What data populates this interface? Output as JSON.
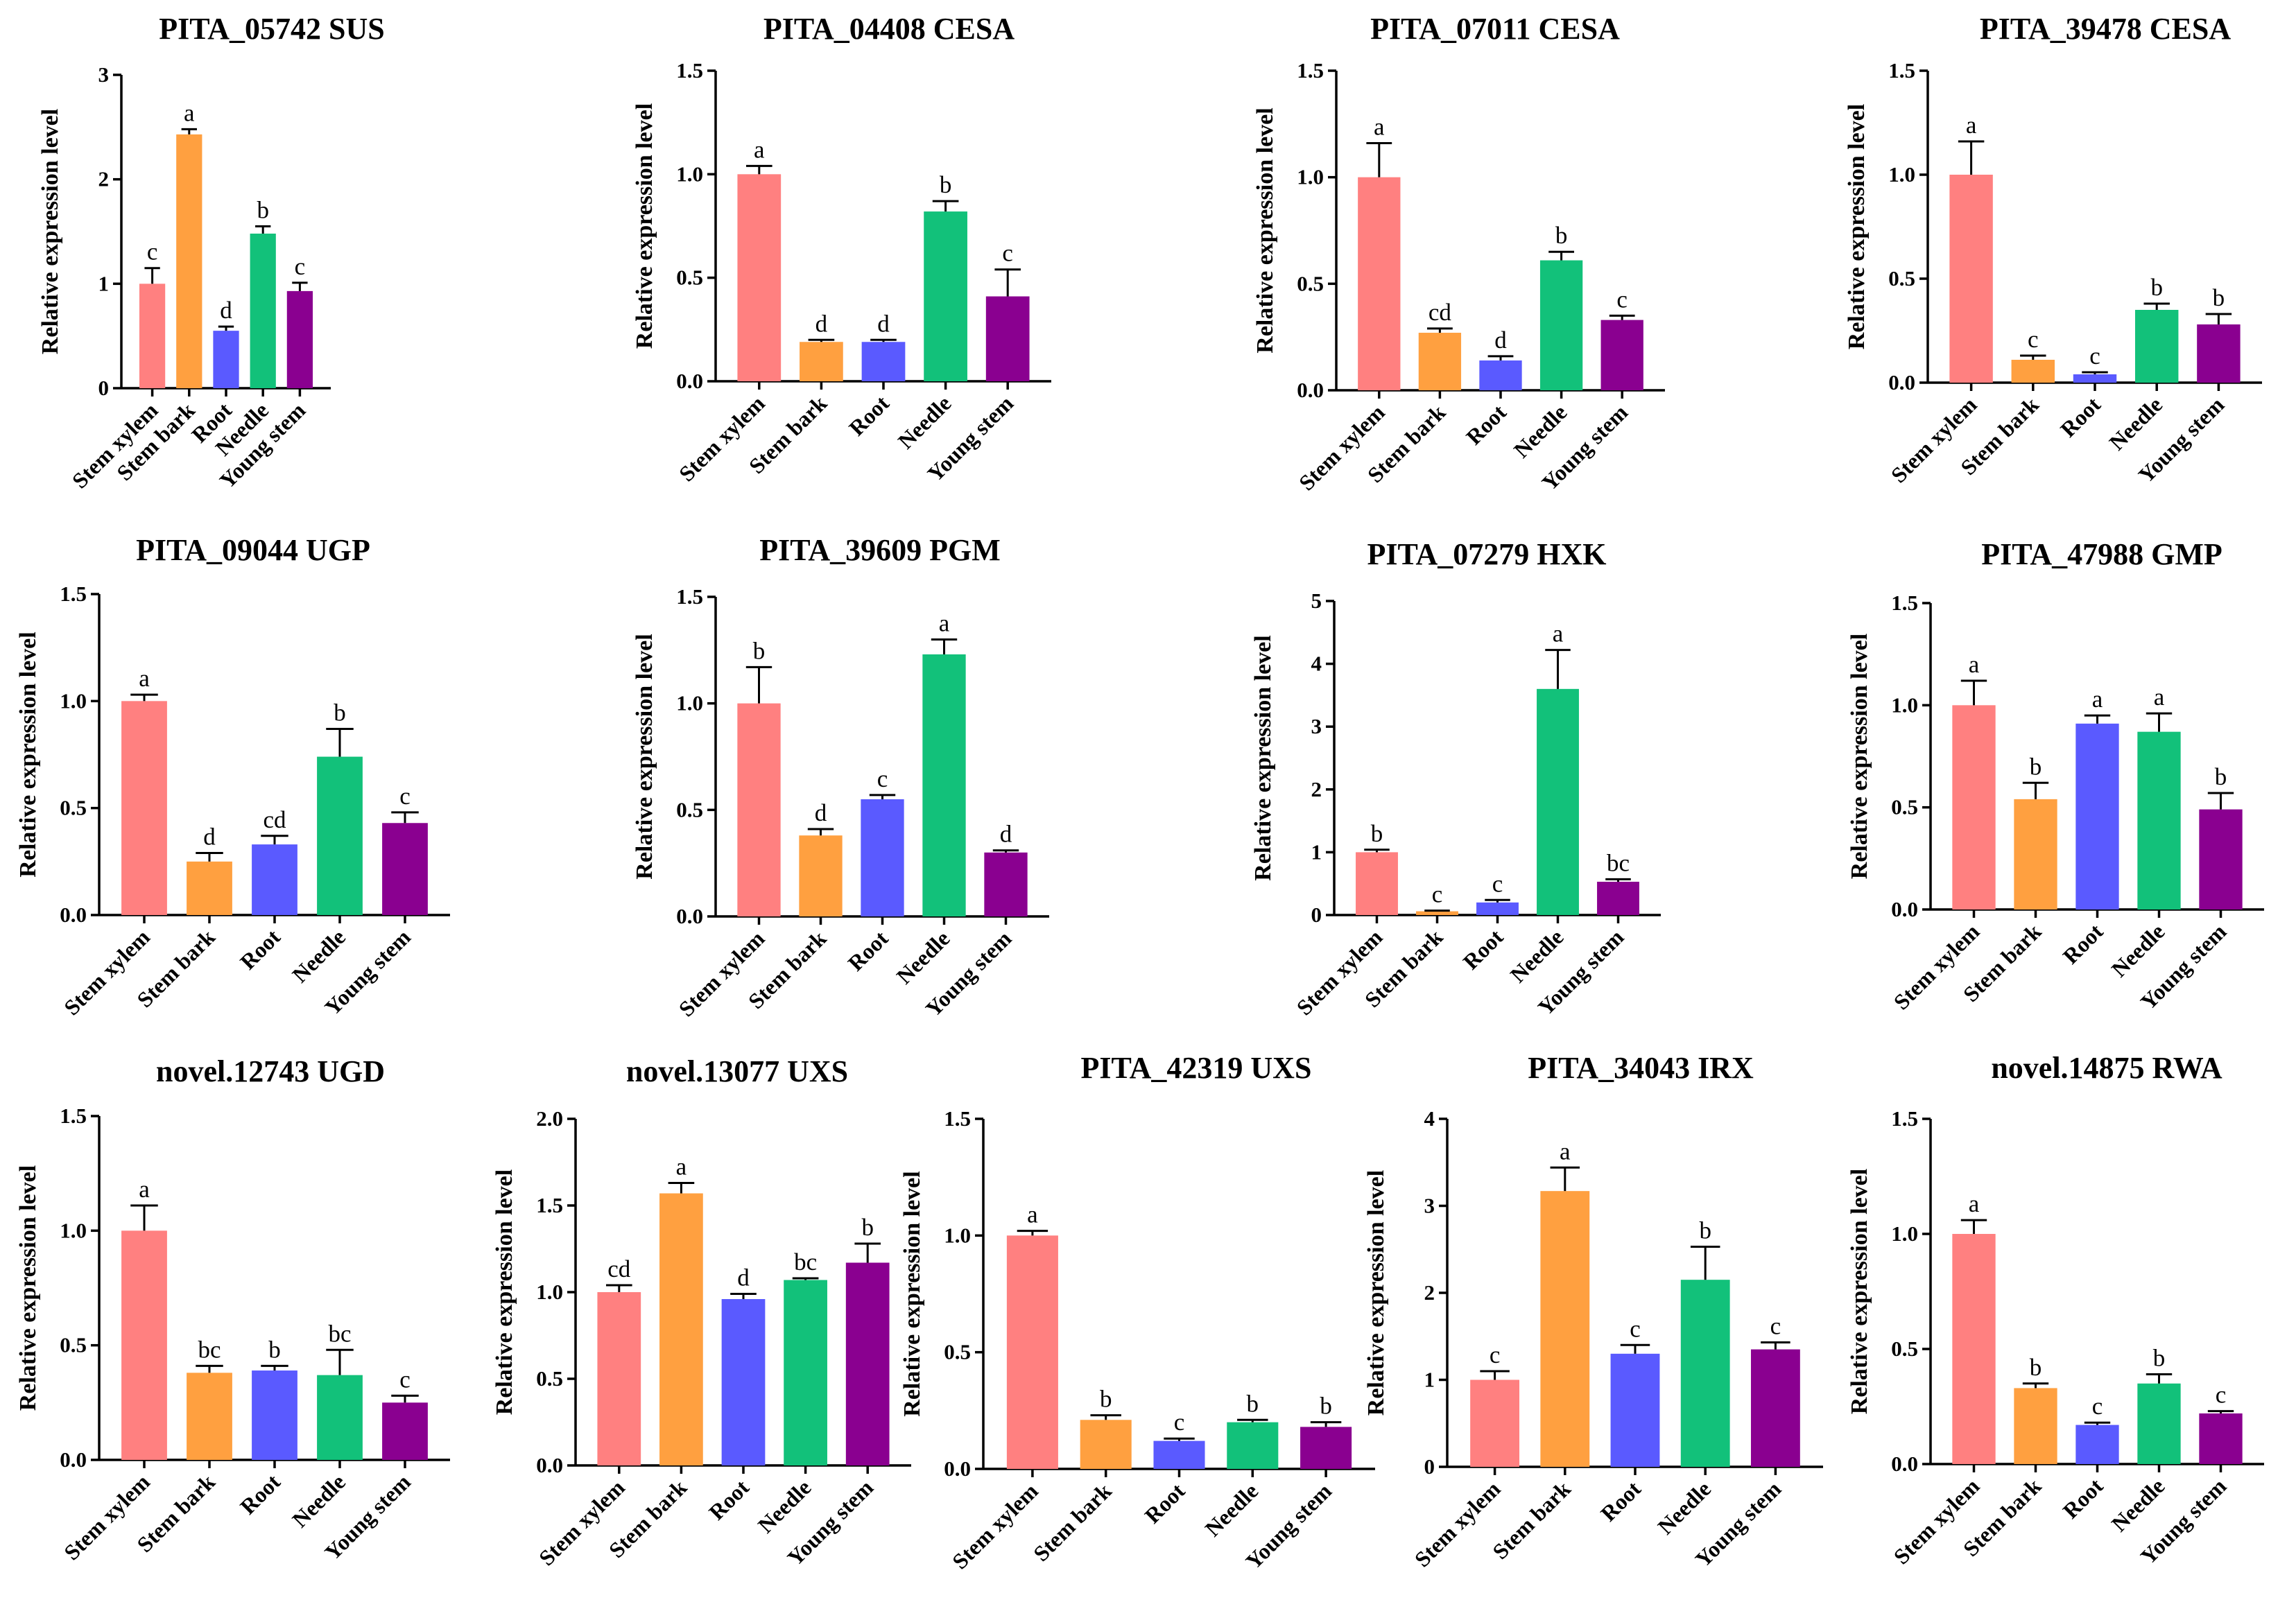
{
  "colors": [
    "#ff8080",
    "#ffa040",
    "#5a5aff",
    "#12c17a",
    "#8a0090"
  ],
  "chart_data": [
    {
      "type": "bar",
      "title": "PITA_05742 SUS",
      "ylabel": "Relative expression level",
      "ylim": [
        0,
        3
      ],
      "ticks": [
        0,
        1,
        2,
        3
      ],
      "tick_labels": [
        "0",
        "1",
        "2",
        "3"
      ],
      "categories": [
        "Stem xylem",
        "Stem bark",
        "Root",
        "Needle",
        "Young stem"
      ],
      "values": [
        1.0,
        2.43,
        0.55,
        1.48,
        0.93
      ],
      "errors": [
        0.15,
        0.05,
        0.04,
        0.07,
        0.08
      ],
      "letters": [
        "c",
        "a",
        "d",
        "b",
        "c"
      ]
    },
    {
      "type": "bar",
      "title": "PITA_04408 CESA",
      "ylabel": "Relative expression level",
      "ylim": [
        0,
        1.5
      ],
      "ticks": [
        0,
        0.5,
        1,
        1.5
      ],
      "tick_labels": [
        "0.0",
        "0.5",
        "1.0",
        "1.5"
      ],
      "categories": [
        "Stem xylem",
        "Stem bark",
        "Root",
        "Needle",
        "Young stem"
      ],
      "values": [
        1.0,
        0.19,
        0.19,
        0.82,
        0.41
      ],
      "errors": [
        0.04,
        0.01,
        0.01,
        0.05,
        0.13
      ],
      "letters": [
        "a",
        "d",
        "d",
        "b",
        "c"
      ]
    },
    {
      "type": "bar",
      "title": "PITA_07011 CESA",
      "ylabel": "Relative expression level",
      "ylim": [
        0,
        1.5
      ],
      "ticks": [
        0,
        0.5,
        1,
        1.5
      ],
      "tick_labels": [
        "0.0",
        "0.5",
        "1.0",
        "1.5"
      ],
      "categories": [
        "Stem xylem",
        "Stem bark",
        "Root",
        "Needle",
        "Young stem"
      ],
      "values": [
        1.0,
        0.27,
        0.14,
        0.61,
        0.33
      ],
      "errors": [
        0.16,
        0.02,
        0.02,
        0.04,
        0.02
      ],
      "letters": [
        "a",
        "cd",
        "d",
        "b",
        "c"
      ]
    },
    {
      "type": "bar",
      "title": "PITA_39478 CESA",
      "ylabel": "Relative expression level",
      "ylim": [
        0,
        1.5
      ],
      "ticks": [
        0,
        0.5,
        1,
        1.5
      ],
      "tick_labels": [
        "0.0",
        "0.5",
        "1.0",
        "1.5"
      ],
      "categories": [
        "Stem xylem",
        "Stem bark",
        "Root",
        "Needle",
        "Young stem"
      ],
      "values": [
        1.0,
        0.11,
        0.04,
        0.35,
        0.28
      ],
      "errors": [
        0.16,
        0.02,
        0.01,
        0.03,
        0.05
      ],
      "letters": [
        "a",
        "c",
        "c",
        "b",
        "b"
      ]
    },
    {
      "type": "bar",
      "title": "PITA_09044 UGP",
      "ylabel": "Relative expression level",
      "ylim": [
        0,
        1.5
      ],
      "ticks": [
        0,
        0.5,
        1,
        1.5
      ],
      "tick_labels": [
        "0.0",
        "0.5",
        "1.0",
        "1.5"
      ],
      "categories": [
        "Stem xylem",
        "Stem bark",
        "Root",
        "Needle",
        "Young stem"
      ],
      "values": [
        1.0,
        0.25,
        0.33,
        0.74,
        0.43
      ],
      "errors": [
        0.03,
        0.04,
        0.04,
        0.13,
        0.05
      ],
      "letters": [
        "a",
        "d",
        "cd",
        "b",
        "c"
      ]
    },
    {
      "type": "bar",
      "title": "PITA_39609 PGM",
      "ylabel": "Relative expression level",
      "ylim": [
        0,
        1.5
      ],
      "ticks": [
        0,
        0.5,
        1,
        1.5
      ],
      "tick_labels": [
        "0.0",
        "0.5",
        "1.0",
        "1.5"
      ],
      "categories": [
        "Stem xylem",
        "Stem bark",
        "Root",
        "Needle",
        "Young stem"
      ],
      "values": [
        1.0,
        0.38,
        0.55,
        1.23,
        0.3
      ],
      "errors": [
        0.17,
        0.03,
        0.02,
        0.07,
        0.01
      ],
      "letters": [
        "b",
        "d",
        "c",
        "a",
        "d"
      ]
    },
    {
      "type": "bar",
      "title": "PITA_07279 HXK",
      "ylabel": "Relative expression level",
      "ylim": [
        0,
        5
      ],
      "ticks": [
        0,
        1,
        2,
        3,
        4,
        5
      ],
      "tick_labels": [
        "0",
        "1",
        "2",
        "3",
        "4",
        "5"
      ],
      "categories": [
        "Stem xylem",
        "Stem bark",
        "Root",
        "Needle",
        "Young stem"
      ],
      "values": [
        1.0,
        0.06,
        0.2,
        3.6,
        0.53
      ],
      "errors": [
        0.04,
        0.01,
        0.04,
        0.62,
        0.04
      ],
      "letters": [
        "b",
        "c",
        "c",
        "a",
        "bc"
      ]
    },
    {
      "type": "bar",
      "title": "PITA_47988 GMP",
      "ylabel": "Relative expression level",
      "ylim": [
        0,
        1.5
      ],
      "ticks": [
        0,
        0.5,
        1,
        1.5
      ],
      "tick_labels": [
        "0.0",
        "0.5",
        "1.0",
        "1.5"
      ],
      "categories": [
        "Stem xylem",
        "Stem bark",
        "Root",
        "Needle",
        "Young stem"
      ],
      "values": [
        1.0,
        0.54,
        0.91,
        0.87,
        0.49
      ],
      "errors": [
        0.12,
        0.08,
        0.04,
        0.09,
        0.08
      ],
      "letters": [
        "a",
        "b",
        "a",
        "a",
        "b"
      ]
    },
    {
      "type": "bar",
      "title": "novel.12743 UGD",
      "ylabel": "Relative expression level",
      "ylim": [
        0,
        1.5
      ],
      "ticks": [
        0,
        0.5,
        1,
        1.5
      ],
      "tick_labels": [
        "0.0",
        "0.5",
        "1.0",
        "1.5"
      ],
      "categories": [
        "Stem xylem",
        "Stem bark",
        "Root",
        "Needle",
        "Young stem"
      ],
      "values": [
        1.0,
        0.38,
        0.39,
        0.37,
        0.25
      ],
      "errors": [
        0.11,
        0.03,
        0.02,
        0.11,
        0.03
      ],
      "letters": [
        "a",
        "bc",
        "b",
        "bc",
        "c"
      ]
    },
    {
      "type": "bar",
      "title": "novel.13077 UXS",
      "ylabel": "Relative expression level",
      "ylim": [
        0,
        2
      ],
      "ticks": [
        0,
        0.5,
        1,
        1.5,
        2
      ],
      "tick_labels": [
        "0.0",
        "0.5",
        "1.0",
        "1.5",
        "2.0"
      ],
      "categories": [
        "Stem xylem",
        "Stem bark",
        "Root",
        "Needle",
        "Young stem"
      ],
      "values": [
        1.0,
        1.57,
        0.96,
        1.07,
        1.17
      ],
      "errors": [
        0.04,
        0.06,
        0.03,
        0.01,
        0.11
      ],
      "letters": [
        "cd",
        "a",
        "d",
        "bc",
        "b"
      ]
    },
    {
      "type": "bar",
      "title": "PITA_42319 UXS",
      "ylabel": "Relative expression level",
      "ylim": [
        0,
        1.5
      ],
      "ticks": [
        0,
        0.5,
        1,
        1.5
      ],
      "tick_labels": [
        "0.0",
        "0.5",
        "1.0",
        "1.5"
      ],
      "categories": [
        "Stem xylem",
        "Stem bark",
        "Root",
        "Needle",
        "Young stem"
      ],
      "values": [
        1.0,
        0.21,
        0.12,
        0.2,
        0.18
      ],
      "errors": [
        0.02,
        0.02,
        0.01,
        0.01,
        0.02
      ],
      "letters": [
        "a",
        "b",
        "c",
        "b",
        "b"
      ]
    },
    {
      "type": "bar",
      "title": "PITA_34043 IRX",
      "ylabel": "Relative expression level",
      "ylim": [
        0,
        4
      ],
      "ticks": [
        0,
        1,
        2,
        3,
        4
      ],
      "tick_labels": [
        "0",
        "1",
        "2",
        "3",
        "4"
      ],
      "categories": [
        "Stem xylem",
        "Stem bark",
        "Root",
        "Needle",
        "Young stem"
      ],
      "values": [
        1.0,
        3.17,
        1.3,
        2.15,
        1.35
      ],
      "errors": [
        0.1,
        0.27,
        0.1,
        0.38,
        0.08
      ],
      "letters": [
        "c",
        "a",
        "c",
        "b",
        "c"
      ]
    },
    {
      "type": "bar",
      "title": "novel.14875 RWA",
      "ylabel": "Relative expression level",
      "ylim": [
        0,
        1.5
      ],
      "ticks": [
        0,
        0.5,
        1,
        1.5
      ],
      "tick_labels": [
        "0.0",
        "0.5",
        "1.0",
        "1.5"
      ],
      "categories": [
        "Stem xylem",
        "Stem bark",
        "Root",
        "Needle",
        "Young stem"
      ],
      "values": [
        1.0,
        0.33,
        0.17,
        0.35,
        0.22
      ],
      "errors": [
        0.06,
        0.02,
        0.01,
        0.04,
        0.01
      ],
      "letters": [
        "a",
        "b",
        "c",
        "b",
        "c"
      ]
    }
  ]
}
